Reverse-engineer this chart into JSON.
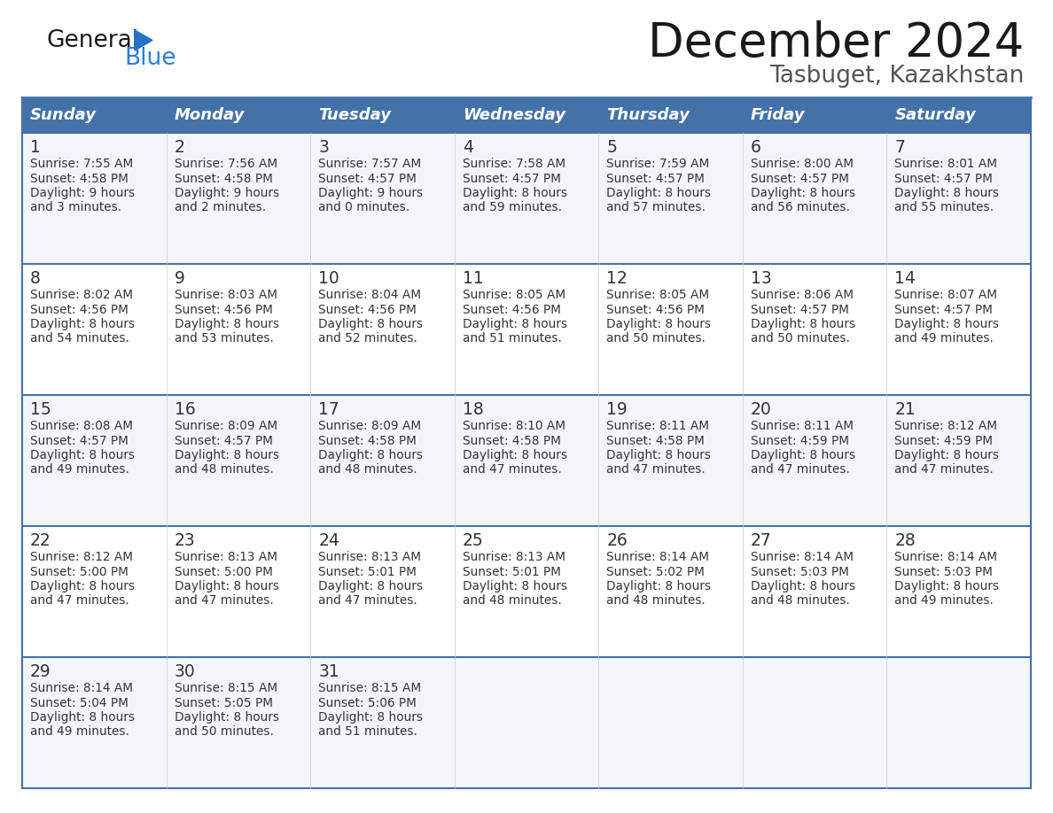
{
  "title": "December 2024",
  "subtitle": "Tasbuget, Kazakhstan",
  "header_bg_color": "#4472a8",
  "header_text_color": "#ffffff",
  "days_of_week": [
    "Sunday",
    "Monday",
    "Tuesday",
    "Wednesday",
    "Thursday",
    "Friday",
    "Saturday"
  ],
  "divider_color": "#4472a8",
  "cell_text_color": "#333333",
  "calendar_data": [
    [
      {
        "day": 1,
        "sunrise": "7:55 AM",
        "sunset": "4:58 PM",
        "daylight_h": "9 hours",
        "daylight_m": "and 3 minutes."
      },
      {
        "day": 2,
        "sunrise": "7:56 AM",
        "sunset": "4:58 PM",
        "daylight_h": "9 hours",
        "daylight_m": "and 2 minutes."
      },
      {
        "day": 3,
        "sunrise": "7:57 AM",
        "sunset": "4:57 PM",
        "daylight_h": "9 hours",
        "daylight_m": "and 0 minutes."
      },
      {
        "day": 4,
        "sunrise": "7:58 AM",
        "sunset": "4:57 PM",
        "daylight_h": "8 hours",
        "daylight_m": "and 59 minutes."
      },
      {
        "day": 5,
        "sunrise": "7:59 AM",
        "sunset": "4:57 PM",
        "daylight_h": "8 hours",
        "daylight_m": "and 57 minutes."
      },
      {
        "day": 6,
        "sunrise": "8:00 AM",
        "sunset": "4:57 PM",
        "daylight_h": "8 hours",
        "daylight_m": "and 56 minutes."
      },
      {
        "day": 7,
        "sunrise": "8:01 AM",
        "sunset": "4:57 PM",
        "daylight_h": "8 hours",
        "daylight_m": "and 55 minutes."
      }
    ],
    [
      {
        "day": 8,
        "sunrise": "8:02 AM",
        "sunset": "4:56 PM",
        "daylight_h": "8 hours",
        "daylight_m": "and 54 minutes."
      },
      {
        "day": 9,
        "sunrise": "8:03 AM",
        "sunset": "4:56 PM",
        "daylight_h": "8 hours",
        "daylight_m": "and 53 minutes."
      },
      {
        "day": 10,
        "sunrise": "8:04 AM",
        "sunset": "4:56 PM",
        "daylight_h": "8 hours",
        "daylight_m": "and 52 minutes."
      },
      {
        "day": 11,
        "sunrise": "8:05 AM",
        "sunset": "4:56 PM",
        "daylight_h": "8 hours",
        "daylight_m": "and 51 minutes."
      },
      {
        "day": 12,
        "sunrise": "8:05 AM",
        "sunset": "4:56 PM",
        "daylight_h": "8 hours",
        "daylight_m": "and 50 minutes."
      },
      {
        "day": 13,
        "sunrise": "8:06 AM",
        "sunset": "4:57 PM",
        "daylight_h": "8 hours",
        "daylight_m": "and 50 minutes."
      },
      {
        "day": 14,
        "sunrise": "8:07 AM",
        "sunset": "4:57 PM",
        "daylight_h": "8 hours",
        "daylight_m": "and 49 minutes."
      }
    ],
    [
      {
        "day": 15,
        "sunrise": "8:08 AM",
        "sunset": "4:57 PM",
        "daylight_h": "8 hours",
        "daylight_m": "and 49 minutes."
      },
      {
        "day": 16,
        "sunrise": "8:09 AM",
        "sunset": "4:57 PM",
        "daylight_h": "8 hours",
        "daylight_m": "and 48 minutes."
      },
      {
        "day": 17,
        "sunrise": "8:09 AM",
        "sunset": "4:58 PM",
        "daylight_h": "8 hours",
        "daylight_m": "and 48 minutes."
      },
      {
        "day": 18,
        "sunrise": "8:10 AM",
        "sunset": "4:58 PM",
        "daylight_h": "8 hours",
        "daylight_m": "and 47 minutes."
      },
      {
        "day": 19,
        "sunrise": "8:11 AM",
        "sunset": "4:58 PM",
        "daylight_h": "8 hours",
        "daylight_m": "and 47 minutes."
      },
      {
        "day": 20,
        "sunrise": "8:11 AM",
        "sunset": "4:59 PM",
        "daylight_h": "8 hours",
        "daylight_m": "and 47 minutes."
      },
      {
        "day": 21,
        "sunrise": "8:12 AM",
        "sunset": "4:59 PM",
        "daylight_h": "8 hours",
        "daylight_m": "and 47 minutes."
      }
    ],
    [
      {
        "day": 22,
        "sunrise": "8:12 AM",
        "sunset": "5:00 PM",
        "daylight_h": "8 hours",
        "daylight_m": "and 47 minutes."
      },
      {
        "day": 23,
        "sunrise": "8:13 AM",
        "sunset": "5:00 PM",
        "daylight_h": "8 hours",
        "daylight_m": "and 47 minutes."
      },
      {
        "day": 24,
        "sunrise": "8:13 AM",
        "sunset": "5:01 PM",
        "daylight_h": "8 hours",
        "daylight_m": "and 47 minutes."
      },
      {
        "day": 25,
        "sunrise": "8:13 AM",
        "sunset": "5:01 PM",
        "daylight_h": "8 hours",
        "daylight_m": "and 48 minutes."
      },
      {
        "day": 26,
        "sunrise": "8:14 AM",
        "sunset": "5:02 PM",
        "daylight_h": "8 hours",
        "daylight_m": "and 48 minutes."
      },
      {
        "day": 27,
        "sunrise": "8:14 AM",
        "sunset": "5:03 PM",
        "daylight_h": "8 hours",
        "daylight_m": "and 48 minutes."
      },
      {
        "day": 28,
        "sunrise": "8:14 AM",
        "sunset": "5:03 PM",
        "daylight_h": "8 hours",
        "daylight_m": "and 49 minutes."
      }
    ],
    [
      {
        "day": 29,
        "sunrise": "8:14 AM",
        "sunset": "5:04 PM",
        "daylight_h": "8 hours",
        "daylight_m": "and 49 minutes."
      },
      {
        "day": 30,
        "sunrise": "8:15 AM",
        "sunset": "5:05 PM",
        "daylight_h": "8 hours",
        "daylight_m": "and 50 minutes."
      },
      {
        "day": 31,
        "sunrise": "8:15 AM",
        "sunset": "5:06 PM",
        "daylight_h": "8 hours",
        "daylight_m": "and 51 minutes."
      },
      null,
      null,
      null,
      null
    ]
  ],
  "logo_color_general": "#1a1a1a",
  "logo_color_blue": "#2980d9",
  "logo_triangle_color": "#2472c8"
}
